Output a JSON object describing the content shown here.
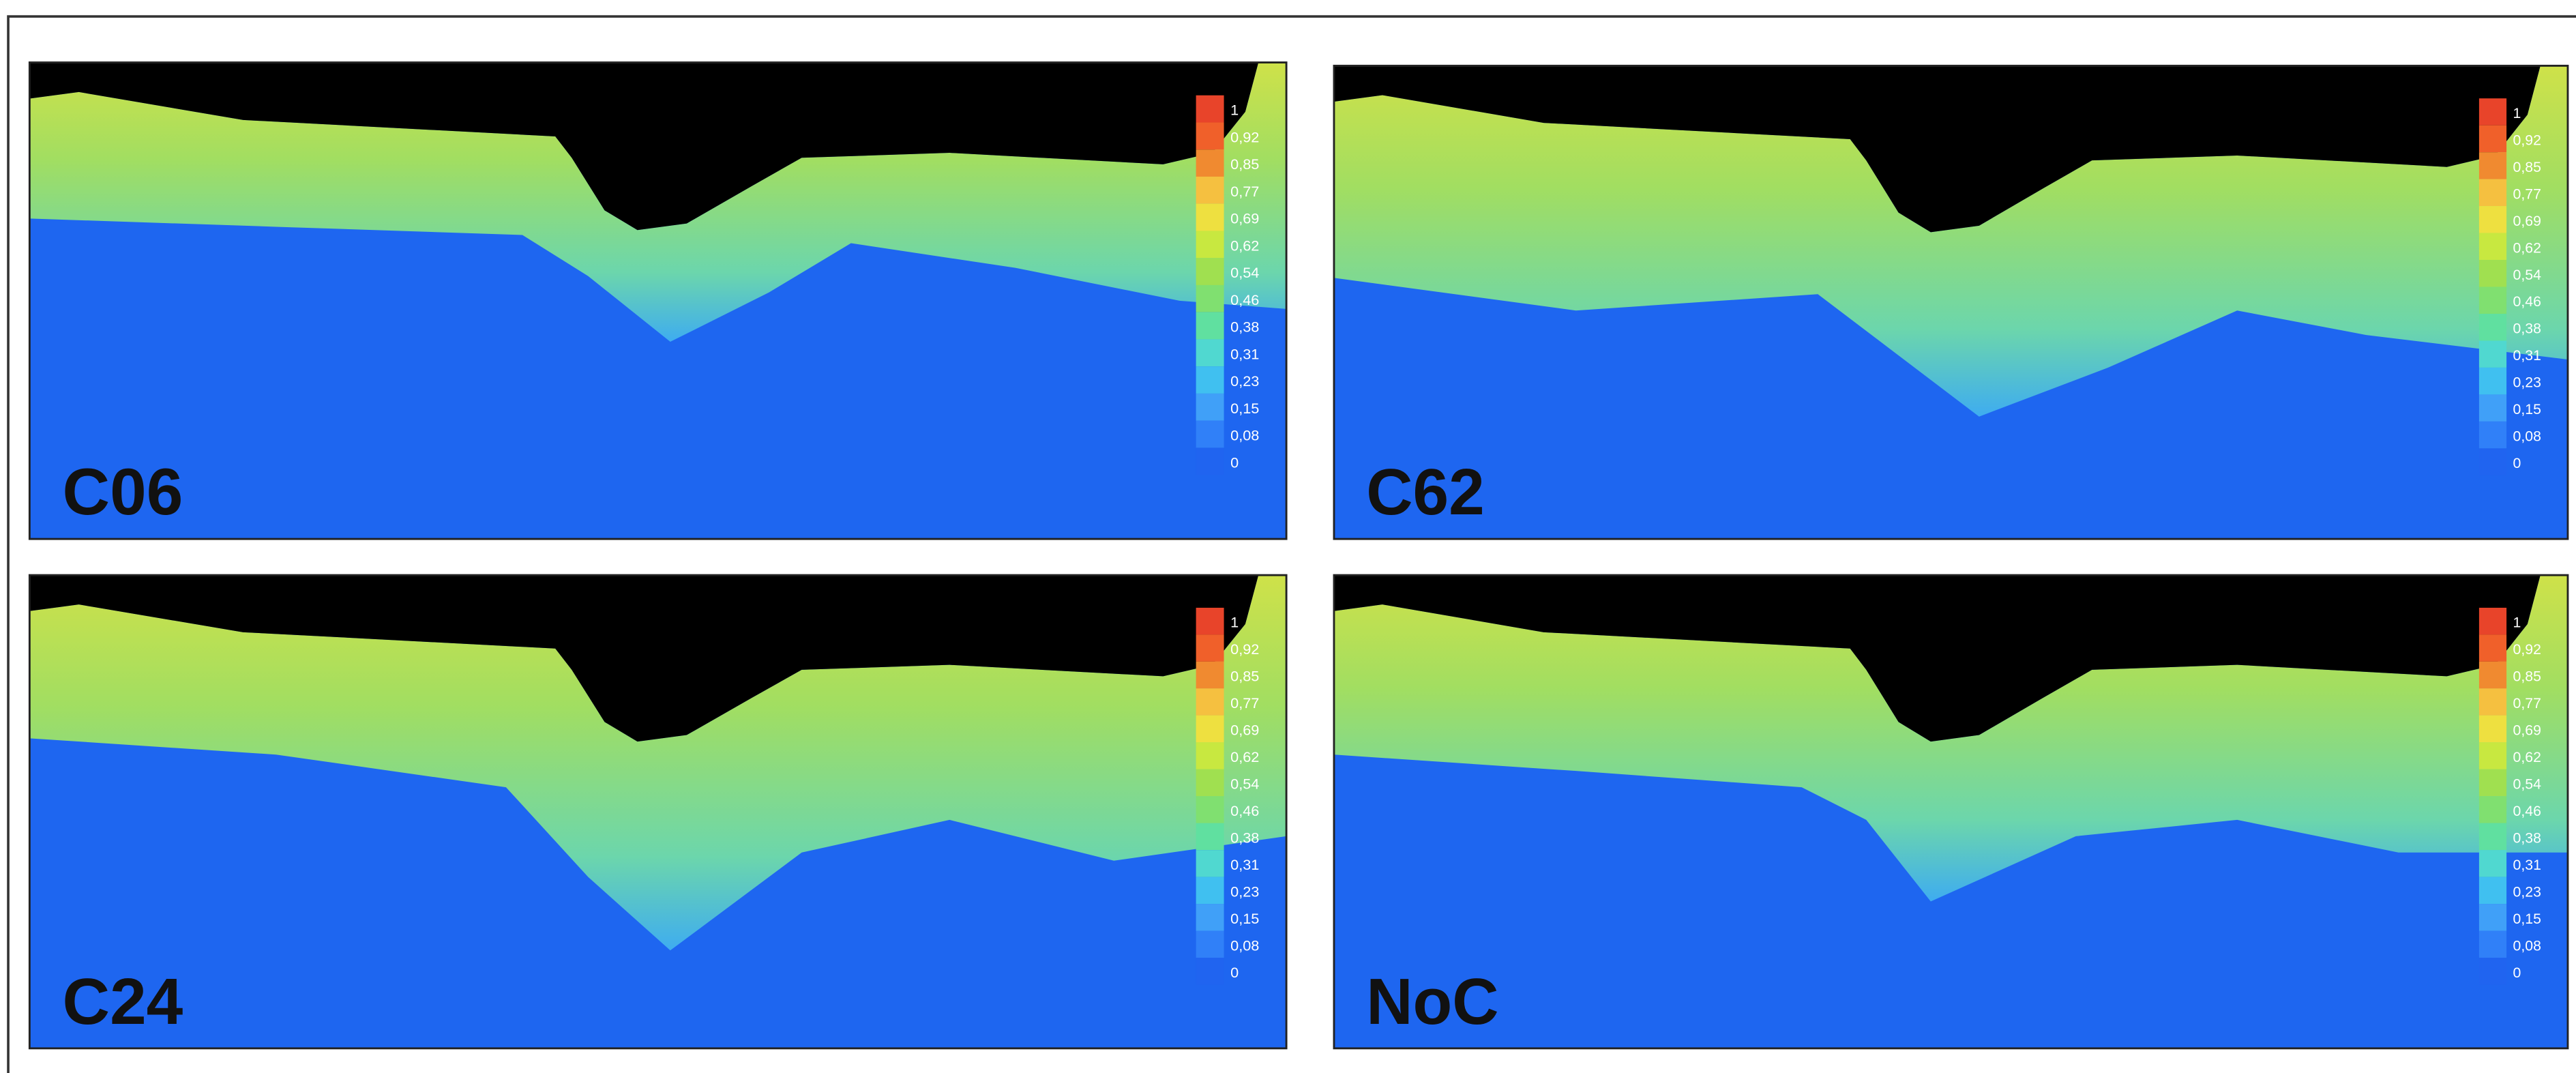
{
  "panels": [
    {
      "label": "C06"
    },
    {
      "label": "C62"
    },
    {
      "label": "C24"
    },
    {
      "label": "NoC"
    }
  ],
  "colorbar": {
    "labels": [
      "1",
      "0,92",
      "0,85",
      "0,77",
      "0,69",
      "0,62",
      "0,54",
      "0,46",
      "0,38",
      "0,31",
      "0,23",
      "0,15",
      "0,08",
      "0"
    ],
    "colors": [
      "#e8442a",
      "#f0602a",
      "#f08a30",
      "#f5c040",
      "#eee040",
      "#c8e840",
      "#a0e050",
      "#80e070",
      "#60e0a0",
      "#50d8d0",
      "#40c0f0",
      "#40a0f8",
      "#3080f8",
      "#2064f0"
    ]
  }
}
